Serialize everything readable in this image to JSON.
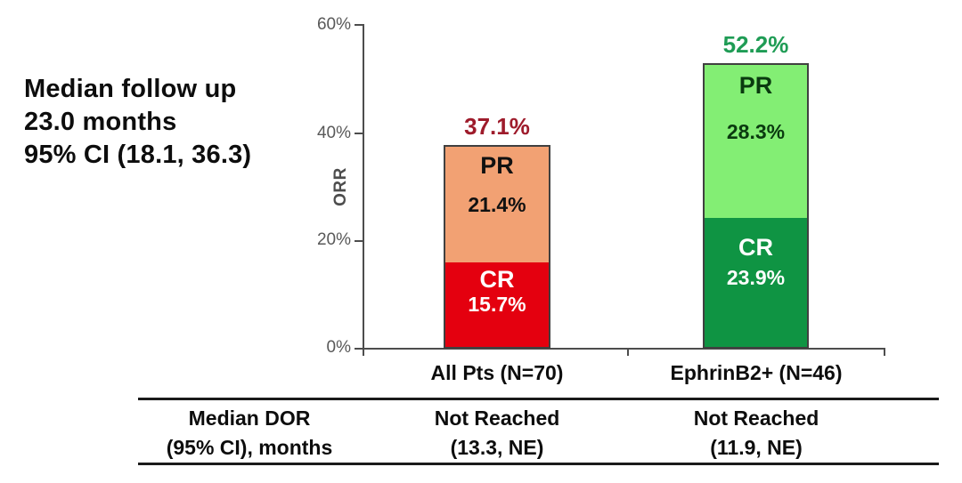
{
  "annotation": {
    "line1": "Median follow up",
    "line2": "23.0 months",
    "line3": "95% CI (18.1, 36.3)"
  },
  "chart_data": {
    "type": "bar",
    "stacked": true,
    "title": "",
    "ylabel": "ORR",
    "ylim": [
      0,
      60
    ],
    "ytick_labels": [
      "60%",
      "40%",
      "20%",
      "0%"
    ],
    "grid": false,
    "legend": "labels-inside-bars",
    "categories": [
      "All Pts (N=70)",
      "EphrinB2+ (N=46)"
    ],
    "bars": [
      {
        "category": "All Pts (N=70)",
        "total": 37.1,
        "total_label": "37.1%",
        "total_label_color": "#9E1B2B",
        "segments": [
          {
            "name": "PR",
            "value": 21.4,
            "value_label": "21.4%",
            "color": "#F2A173",
            "text_color": "#111111"
          },
          {
            "name": "CR",
            "value": 15.7,
            "value_label": "15.7%",
            "color": "#E4000F",
            "text_color": "#FFFFFF"
          }
        ]
      },
      {
        "category": "EphrinB2+ (N=46)",
        "total": 52.2,
        "total_label": "52.2%",
        "total_label_color": "#1F9C55",
        "segments": [
          {
            "name": "PR",
            "value": 28.3,
            "value_label": "28.3%",
            "color": "#83EE74",
            "text_color": "#0A3A0F"
          },
          {
            "name": "CR",
            "value": 23.9,
            "value_label": "23.9%",
            "color": "#0F9443",
            "text_color": "#FFFFFF"
          }
        ]
      }
    ]
  },
  "table": {
    "row_header_line1": "Median DOR",
    "row_header_line2": "(95% CI), months",
    "columns": [
      {
        "line1": "Not Reached",
        "line2": "(13.3, NE)"
      },
      {
        "line1": "Not Reached",
        "line2": "(11.9, NE)"
      }
    ]
  }
}
